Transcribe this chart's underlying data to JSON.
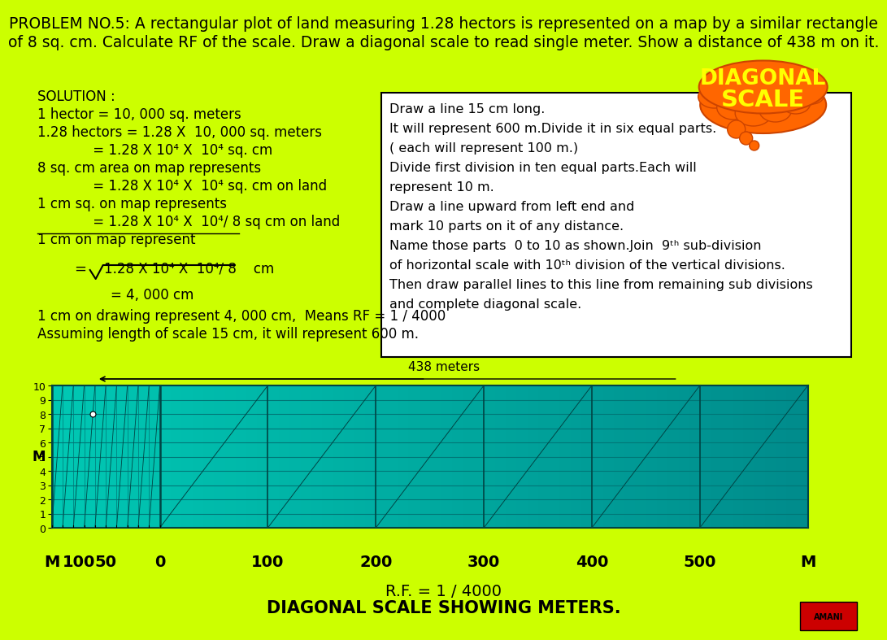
{
  "bg_color": "#CCFF00",
  "title_line1": "PROBLEM NO.5: A rectangular plot of land measuring 1.28 hectors is represented on a map by a similar rectangle",
  "title_line2": "of 8 sq. cm. Calculate RF of the scale. Draw a diagonal scale to read single meter. Show a distance of 438 m on it.",
  "rf_label": "R.F. = 1 / 4000",
  "bottom_label": "DIAGONAL SCALE SHOWING METERS.",
  "scale_title": "438 meters",
  "diagonal_text1": "DIAGONAL",
  "diagonal_text2": "SCALE",
  "cloud_color": "#FF6600",
  "cloud_text_color": "#FFFF00",
  "scale_bg": "#00CCAA",
  "grid_color": "#007777",
  "box_bg": "#FFFFFF",
  "box_edge": "#000000"
}
